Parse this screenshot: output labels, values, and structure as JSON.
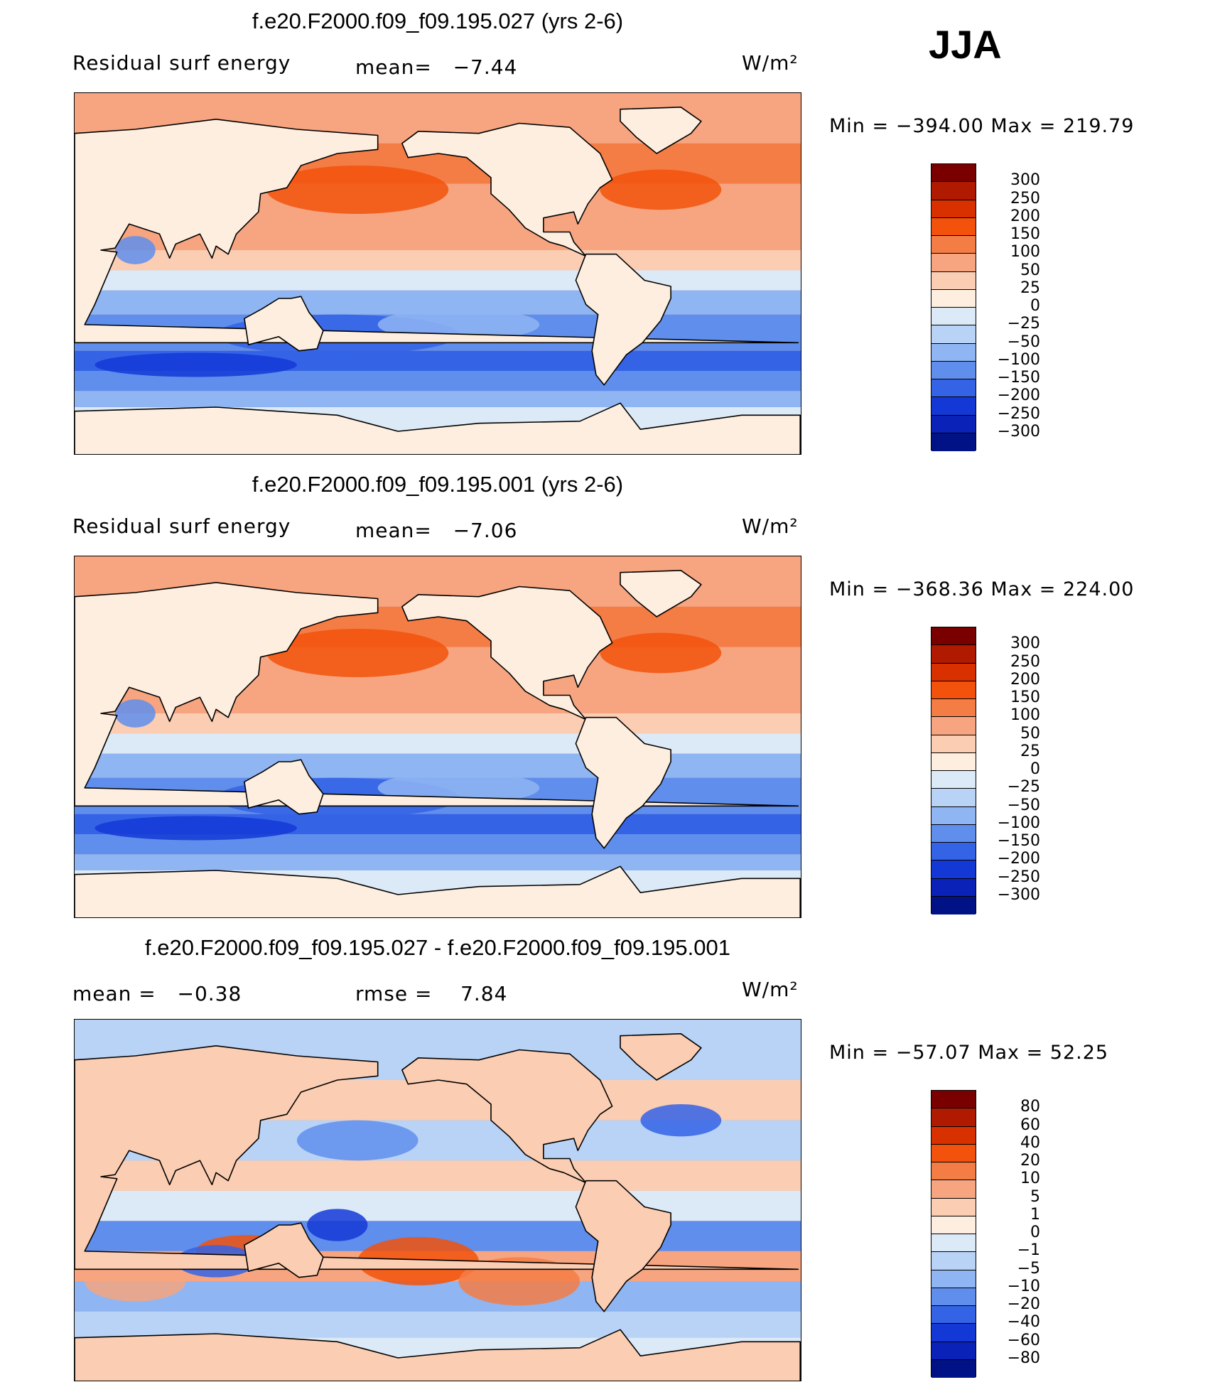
{
  "season": "JJA",
  "chart_data": [
    {
      "type": "heatmap",
      "title": "f.e20.F2000.f09_f09.195.027 (yrs 2-6)",
      "left_label": "Residual surf energy",
      "stat_label": "mean=",
      "stat_value": "−7.44",
      "units": "W/m²",
      "min_max": "Min  =  −394.00  Max  =  219.79",
      "min": -394.0,
      "max": 219.79,
      "mean": -7.44,
      "levels": [
        "300",
        "250",
        "200",
        "150",
        "100",
        "50",
        "25",
        "0",
        "−25",
        "−50",
        "−100",
        "−150",
        "−200",
        "−250",
        "−300"
      ],
      "colors": [
        "#7a0000",
        "#b01a00",
        "#d93000",
        "#f2520c",
        "#f47c45",
        "#f6a580",
        "#fbcdb2",
        "#fdeedf",
        "#dceaf8",
        "#b8d3f6",
        "#8fb5f2",
        "#5f8eec",
        "#3463e6",
        "#1438d6",
        "#0a22b8",
        "#001285"
      ]
    },
    {
      "type": "heatmap",
      "title": "f.e20.F2000.f09_f09.195.001 (yrs 2-6)",
      "left_label": "Residual surf energy",
      "stat_label": "mean=",
      "stat_value": "−7.06",
      "units": "W/m²",
      "min_max": "Min  =  −368.36  Max  =  224.00",
      "min": -368.36,
      "max": 224.0,
      "mean": -7.06,
      "levels": [
        "300",
        "250",
        "200",
        "150",
        "100",
        "50",
        "25",
        "0",
        "−25",
        "−50",
        "−100",
        "−150",
        "−200",
        "−250",
        "−300"
      ],
      "colors": [
        "#7a0000",
        "#b01a00",
        "#d93000",
        "#f2520c",
        "#f47c45",
        "#f6a580",
        "#fbcdb2",
        "#fdeedf",
        "#dceaf8",
        "#b8d3f6",
        "#8fb5f2",
        "#5f8eec",
        "#3463e6",
        "#1438d6",
        "#0a22b8",
        "#001285"
      ]
    },
    {
      "type": "heatmap",
      "title": "f.e20.F2000.f09_f09.195.027 - f.e20.F2000.f09_f09.195.001",
      "left_label": "mean  =",
      "left_value": "−0.38",
      "stat_label": "rmse  =",
      "stat_value": "7.84",
      "units": "W/m²",
      "min_max": "Min  =  −57.07  Max  =   52.25",
      "min": -57.07,
      "max": 52.25,
      "mean": -0.38,
      "rmse": 7.84,
      "levels": [
        "80",
        "60",
        "40",
        "20",
        "10",
        "5",
        "1",
        "0",
        "−1",
        "−5",
        "−10",
        "−20",
        "−40",
        "−60",
        "−80"
      ],
      "colors": [
        "#7a0000",
        "#b01a00",
        "#d93000",
        "#f2520c",
        "#f47c45",
        "#f6a580",
        "#fbcdb2",
        "#fdeedf",
        "#dceaf8",
        "#b8d3f6",
        "#8fb5f2",
        "#5f8eec",
        "#3463e6",
        "#1438d6",
        "#0a22b8",
        "#001285"
      ]
    }
  ]
}
